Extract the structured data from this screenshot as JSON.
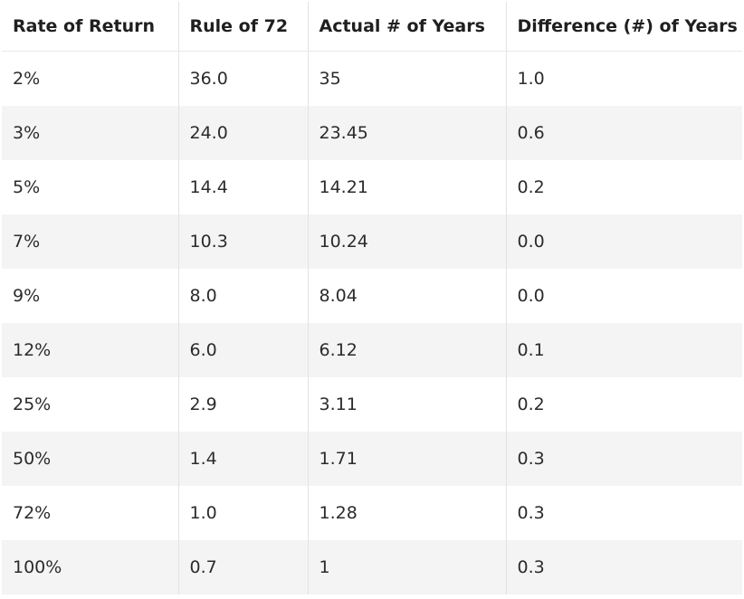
{
  "table": {
    "headers": [
      "Rate of Return",
      "Rule of 72",
      "Actual # of Years",
      "Difference (#) of Years"
    ],
    "rows": [
      [
        "2%",
        "36.0",
        "35",
        "1.0"
      ],
      [
        "3%",
        "24.0",
        "23.45",
        "0.6"
      ],
      [
        "5%",
        "14.4",
        "14.21",
        "0.2"
      ],
      [
        "7%",
        "10.3",
        "10.24",
        "0.0"
      ],
      [
        "9%",
        "8.0",
        "8.04",
        "0.0"
      ],
      [
        "12%",
        "6.0",
        "6.12",
        "0.1"
      ],
      [
        "25%",
        "2.9",
        "3.11",
        "0.2"
      ],
      [
        "50%",
        "1.4",
        "1.71",
        "0.3"
      ],
      [
        "72%",
        "1.0",
        "1.28",
        "0.3"
      ],
      [
        "100%",
        "0.7",
        "1",
        "0.3"
      ]
    ]
  }
}
